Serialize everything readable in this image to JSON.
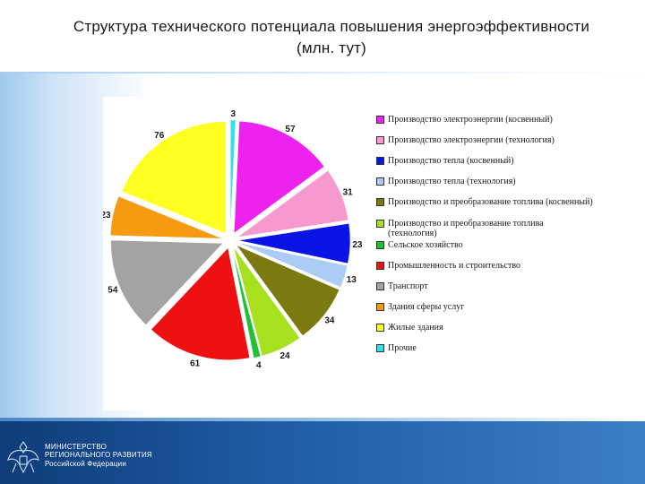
{
  "slide": {
    "title": "Структура технического потенциала повышения энергоэффективности\n(млн. тут)",
    "footer": {
      "line1": "МИНИСТЕРСТВО",
      "line2": "РЕГИОНАЛЬНОГО РАЗВИТИЯ",
      "line3": "Российской Федерации"
    }
  },
  "chart_data": {
    "type": "pie",
    "title": "",
    "labels": [
      "Прочие",
      "Производство электроэнергии (косвенный)",
      "Производство электроэнергии (технология)",
      "Производство тепла (косвенный)",
      "Производство тепла (технология)",
      "Производство и преобразование топлива (косвенный)",
      "Производство и преобразование топлива (технология)",
      "Сельское хозяйство",
      "Промышленность и строительство",
      "Транспорт",
      "Здания сферы услуг",
      "Жилые здания"
    ],
    "values": [
      3,
      57,
      31,
      23,
      13,
      34,
      24,
      4,
      61,
      54,
      23,
      76
    ],
    "colors": [
      "#33e0e8",
      "#ee22ee",
      "#f599cf",
      "#0a14e6",
      "#aaccf5",
      "#7a7a10",
      "#a6e01e",
      "#22c035",
      "#ee1111",
      "#a3a3a3",
      "#f59a11",
      "#ffff22"
    ],
    "legend": {
      "position": "right",
      "entries": [
        {
          "label": "Производство электроэнергии (косвенный)",
          "color": "#ee22ee"
        },
        {
          "label": "Производство электроэнергии (технология)",
          "color": "#f599cf"
        },
        {
          "label": "Производство тепла (косвенный)",
          "color": "#0a14e6"
        },
        {
          "label": "Производство тепла (технология)",
          "color": "#aaccf5"
        },
        {
          "label": "Производство и преобразование топлива (косвенный)",
          "color": "#7a7a10"
        },
        {
          "label": "Производство и преобразование топлива (технология)",
          "color": "#a6e01e"
        },
        {
          "label": "Сельское хозяйство",
          "color": "#22c035"
        },
        {
          "label": "Промышленность и строительство",
          "color": "#ee1111"
        },
        {
          "label": "Транспорт",
          "color": "#a3a3a3"
        },
        {
          "label": "Здания сферы услуг",
          "color": "#f59a11"
        },
        {
          "label": "Жилые здания",
          "color": "#ffff22"
        },
        {
          "label": "Прочие",
          "color": "#33e0e8"
        }
      ]
    },
    "exploded": true
  }
}
